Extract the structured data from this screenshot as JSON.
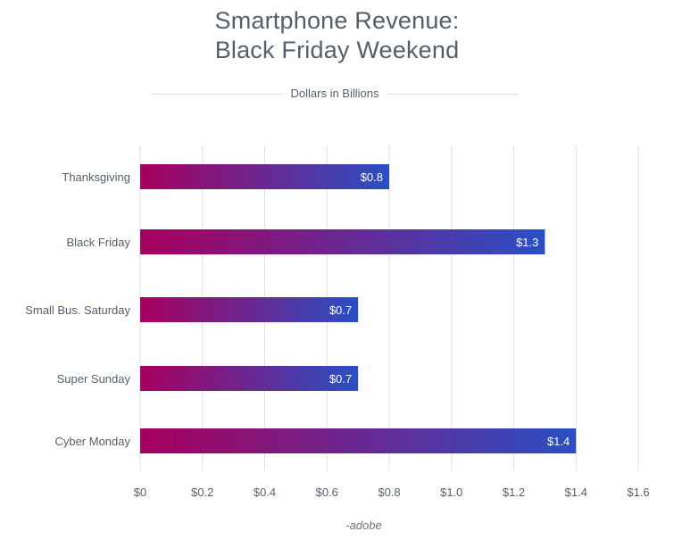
{
  "chart_data": {
    "type": "bar",
    "orientation": "horizontal",
    "title": [
      "Smartphone Revenue:",
      "Black Friday Weekend"
    ],
    "subtitle": "Dollars in Billions",
    "categories": [
      "Thanksgiving",
      "Black Friday",
      "Small Bus. Saturday",
      "Super Sunday",
      "Cyber Monday"
    ],
    "values": [
      0.8,
      1.3,
      0.7,
      0.7,
      1.4
    ],
    "data_labels": [
      "$0.8",
      "$1.3",
      "$0.7",
      "$0.7",
      "$1.4"
    ],
    "x_ticks": [
      0,
      0.2,
      0.4,
      0.6,
      0.8,
      1.0,
      1.2,
      1.4,
      1.6
    ],
    "x_tick_labels": [
      "$0",
      "$0.2",
      "$0.4",
      "$0.6",
      "$0.8",
      "$1.0",
      "$1.2",
      "$1.4",
      "$1.6"
    ],
    "xlim": [
      0,
      1.6
    ],
    "grid": true,
    "source": "-adobe",
    "colors": {
      "gradient_start": "#a8005e",
      "gradient_end": "#2a4fc4",
      "grid": "#dcdfe3",
      "text": "#555f6b"
    }
  }
}
